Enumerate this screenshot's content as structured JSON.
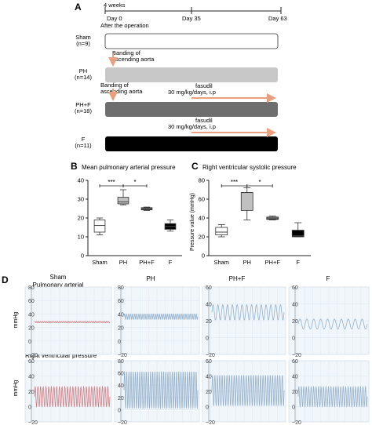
{
  "panelA": {
    "letter": "A",
    "timeline": {
      "duration_label": "4 weeks",
      "day0_label": "Day 0",
      "day0_sublabel": "After the operation",
      "day35_label": "Day 35",
      "day63_label": "Day 63"
    },
    "groups": [
      {
        "name": "Sham",
        "n": "(n=9)",
        "fill": "#ffffff"
      },
      {
        "name": "PH",
        "n": "(n=14)",
        "fill": "#c8c8c8"
      },
      {
        "name": "PH+F",
        "n": "(n=18)",
        "fill": "#6e6e6e"
      },
      {
        "name": "F",
        "n": "(n=11)",
        "fill": "#000000"
      }
    ],
    "banding_label": "Banding of\nascending aorta",
    "fasudil_label": "fasudil",
    "fasudil_dose": "30 mg/kg/days, i.p",
    "arrow_color": "#e9a07e"
  },
  "chart_data": [
    {
      "panel": "B",
      "type": "box",
      "title": "Mean pulmonary arterial pressure",
      "ylabel": "",
      "ylim": [
        0,
        40
      ],
      "yticks": [
        "0",
        "10",
        "20",
        "30",
        "40"
      ],
      "categories": [
        "Sham",
        "PH",
        "PH+F",
        "F"
      ],
      "boxes": [
        {
          "min": 11,
          "q1": 12.5,
          "median": 16,
          "q3": 19,
          "max": 20,
          "fill": "#ffffff"
        },
        {
          "min": 27,
          "q1": 27.5,
          "median": 28.5,
          "q3": 31,
          "max": 35,
          "fill": "#c0c0c0"
        },
        {
          "min": 24,
          "q1": 24.3,
          "median": 24.8,
          "q3": 25.5,
          "max": 25.8,
          "fill": "#6e6e6e"
        },
        {
          "min": 13,
          "q1": 14,
          "median": 15.5,
          "q3": 17,
          "max": 19,
          "fill": "#000000"
        }
      ],
      "significance": [
        {
          "from": 0,
          "to": 1,
          "label": "***"
        },
        {
          "from": 1,
          "to": 2,
          "label": "*"
        }
      ]
    },
    {
      "panel": "C",
      "type": "box",
      "title": "Right ventricular systolic pressure",
      "ylabel": "Pressure value (mmHg)",
      "ylim": [
        0,
        80
      ],
      "yticks": [
        "0",
        "20",
        "40",
        "60",
        "80"
      ],
      "categories": [
        "Sham",
        "PH",
        "PH+F",
        "F"
      ],
      "boxes": [
        {
          "min": 20,
          "q1": 22,
          "median": 25,
          "q3": 30,
          "max": 33,
          "fill": "#ffffff"
        },
        {
          "min": 38,
          "q1": 48,
          "median": 67,
          "q3": 67,
          "max": 72,
          "fill": "#c0c0c0"
        },
        {
          "min": 38,
          "q1": 38.5,
          "median": 39,
          "q3": 41,
          "max": 42,
          "fill": "#6e6e6e"
        },
        {
          "min": 20,
          "q1": 20,
          "median": 21,
          "q3": 27,
          "max": 35,
          "fill": "#000000"
        }
      ],
      "significance": [
        {
          "from": 0,
          "to": 1,
          "label": "***"
        },
        {
          "from": 1,
          "to": 2,
          "label": "*"
        }
      ]
    },
    {
      "panel": "D",
      "type": "line",
      "row_label_1": "Pulmonary arterial",
      "row_label_2": "Right ventricular pressure",
      "ylabel": "mmHg",
      "column_titles": [
        "Sham",
        "PH",
        "PH+F",
        "F"
      ],
      "traces": [
        {
          "group": "Sham",
          "row": 1,
          "color": "#cf6f75",
          "ylim": [
            -20,
            80
          ],
          "yticks": [
            "80",
            "60",
            "40",
            "20",
            "0",
            "−20"
          ],
          "mean": 28,
          "amplitude": 1,
          "cycles": 40
        },
        {
          "group": "PH",
          "row": 1,
          "color": "#8aa9c6",
          "ylim": [
            -20,
            80
          ],
          "yticks": [
            "80",
            "60",
            "40",
            "20",
            "0",
            "−20"
          ],
          "mean": 36,
          "amplitude": 4,
          "cycles": 36
        },
        {
          "group": "PH+F",
          "row": 1,
          "color": "#8aa9c6",
          "ylim": [
            -20,
            60
          ],
          "yticks": [
            "60",
            "40",
            "20",
            "0",
            "−20"
          ],
          "mean": 30,
          "amplitude": 9,
          "cycles": 15
        },
        {
          "group": "F",
          "row": 1,
          "color": "#8aa9c6",
          "ylim": [
            -20,
            60
          ],
          "yticks": [
            "60",
            "40",
            "20",
            "0",
            "−20"
          ],
          "mean": 16,
          "amplitude": 6,
          "cycles": 10
        },
        {
          "group": "Sham",
          "row": 2,
          "color": "#cf6f75",
          "ylim": [
            -20,
            60
          ],
          "yticks": [
            "60",
            "40",
            "20",
            "0",
            "−20"
          ],
          "mean": 13,
          "amplitude": 13,
          "cycles": 28
        },
        {
          "group": "PH",
          "row": 2,
          "color": "#8aa9c6",
          "ylim": [
            -20,
            80
          ],
          "yticks": [
            "80",
            "60",
            "40",
            "20",
            "0",
            "−20"
          ],
          "mean": 32,
          "amplitude": 30,
          "cycles": 34
        },
        {
          "group": "PH+F",
          "row": 2,
          "color": "#8aa9c6",
          "ylim": [
            -20,
            60
          ],
          "yticks": [
            "60",
            "40",
            "20",
            "0",
            "−20"
          ],
          "mean": 21,
          "amplitude": 20,
          "cycles": 30
        },
        {
          "group": "F",
          "row": 2,
          "color": "#8aa9c6",
          "ylim": [
            -20,
            60
          ],
          "yticks": [
            "60",
            "40",
            "20",
            "0",
            "−20"
          ],
          "mean": 13,
          "amplitude": 13,
          "cycles": 28
        }
      ]
    }
  ]
}
